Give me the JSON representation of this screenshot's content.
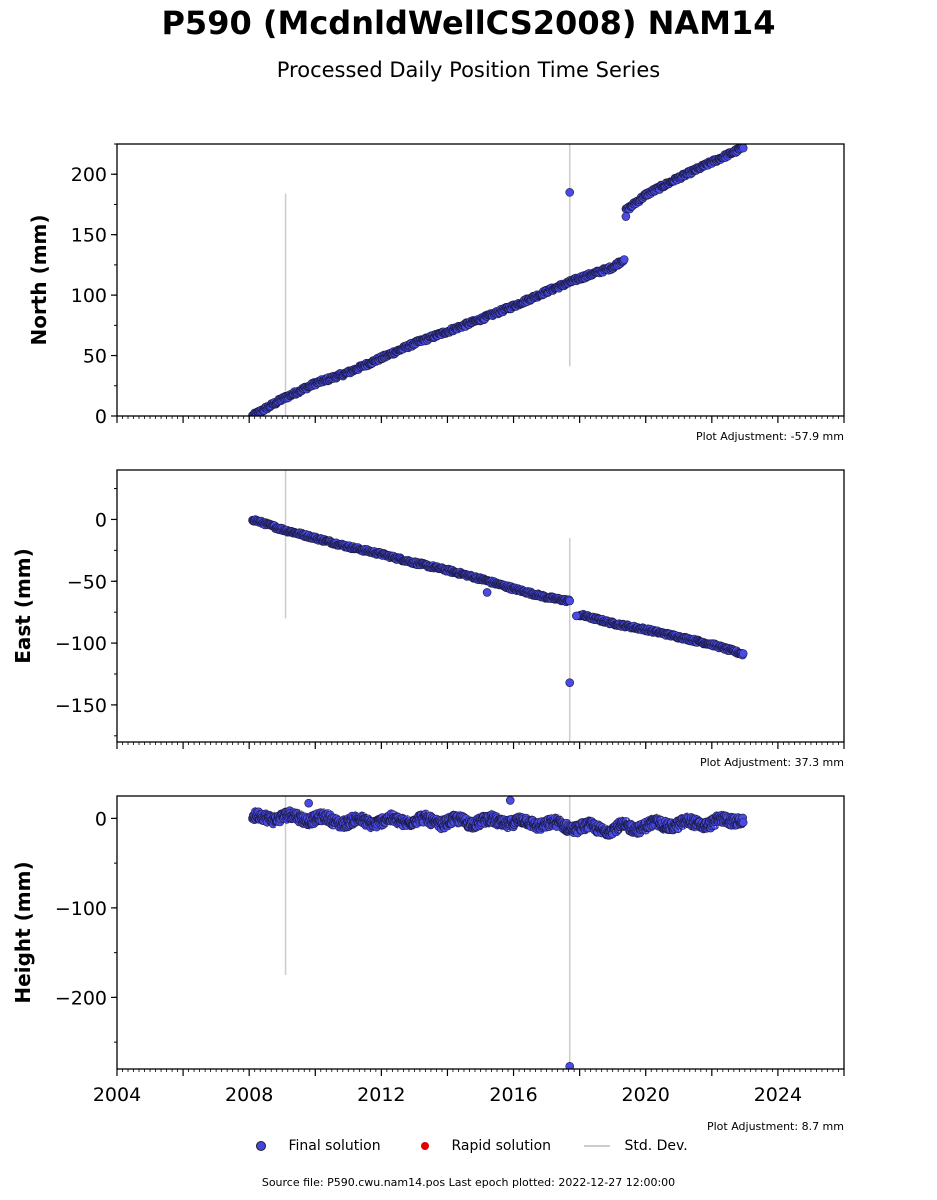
{
  "chart_data": {
    "type": "scatter",
    "title": "P590 (McdnldWellCS2008) NAM14",
    "subtitle": "Processed Daily Position Time Series",
    "x_ticks": [
      "2004",
      "2008",
      "2012",
      "2016",
      "2020",
      "2024"
    ],
    "xlim": [
      2004,
      2026
    ],
    "legend": [
      {
        "label": "Final solution",
        "color": "#4444e0"
      },
      {
        "label": "Rapid solution",
        "color": "#e00000"
      },
      {
        "label": "Std. Dev.",
        "color": "#cccccc"
      }
    ],
    "footer": "Source file: P590.cwu.nam14.pos  Last epoch plotted: 2022-12-27 12:00:00",
    "panels": [
      {
        "ylabel": "North (mm)",
        "ylim": [
          0,
          225
        ],
        "yticks": [
          "0",
          "50",
          "100",
          "150",
          "200"
        ],
        "adjustment": "Plot Adjustment: -57.9 mm",
        "series": [
          {
            "x": [
              2008.1,
              2009.0,
              2010.0,
              2011.0,
              2012.0,
              2013.0,
              2014.0,
              2015.0,
              2016.0,
              2017.0,
              2018.0,
              2019.0,
              2019.35
            ],
            "y": [
              0,
              14,
              27,
              36,
              48,
              60,
              70,
              80,
              91,
              103,
              114,
              123,
              130
            ]
          },
          {
            "x": [
              2019.4,
              2020.0,
              2021.0,
              2022.0,
              2022.95
            ],
            "y": [
              170,
              183,
              197,
              210,
              222
            ]
          }
        ],
        "outliers": [
          {
            "x": 2017.7,
            "y": 185
          },
          {
            "x": 2019.4,
            "y": 165
          }
        ],
        "error_bars": [
          {
            "x": 2009.1,
            "y_low": 0,
            "y_high": 184
          },
          {
            "x": 2017.7,
            "y_low": 41,
            "y_high": 225
          }
        ]
      },
      {
        "ylabel": "East (mm)",
        "ylim": [
          -180,
          40
        ],
        "yticks": [
          "0",
          "−50",
          "−100",
          "−150"
        ],
        "adjustment": "Plot Adjustment: 37.3 mm",
        "series": [
          {
            "x": [
              2008.1,
              2009.0,
              2010.0,
              2011.0,
              2012.0,
              2013.0,
              2014.0,
              2015.0,
              2016.0,
              2017.0,
              2017.7
            ],
            "y": [
              0,
              -8,
              -15,
              -22,
              -28,
              -35,
              -41,
              -48,
              -56,
              -63,
              -66
            ]
          },
          {
            "x": [
              2018.0,
              2019.0,
              2020.0,
              2021.0,
              2022.0,
              2022.95
            ],
            "y": [
              -77,
              -84,
              -89,
              -95,
              -101,
              -109
            ]
          }
        ],
        "outliers": [
          {
            "x": 2017.7,
            "y": -132
          },
          {
            "x": 2015.2,
            "y": -59
          },
          {
            "x": 2017.9,
            "y": -78
          }
        ],
        "error_bars": [
          {
            "x": 2009.1,
            "y_low": -80,
            "y_high": 40
          },
          {
            "x": 2017.7,
            "y_low": -180,
            "y_high": -15
          }
        ]
      },
      {
        "ylabel": "Height (mm)",
        "ylim": [
          -280,
          25
        ],
        "yticks": [
          "0",
          "−100",
          "−200"
        ],
        "adjustment": "Plot Adjustment: 8.7 mm",
        "series": [
          {
            "x": [
              2008.1,
              2009.0,
              2010.0,
              2011.0,
              2012.0,
              2013.0,
              2014.0,
              2015.0,
              2016.0,
              2017.0,
              2018.0,
              2019.0,
              2020.0,
              2021.0,
              2022.0,
              2022.95
            ],
            "y": [
              0,
              2,
              0,
              -4,
              -3,
              -2,
              -4,
              -3,
              -4,
              -6,
              -10,
              -12,
              -8,
              -6,
              -5,
              0
            ]
          }
        ],
        "outliers": [
          {
            "x": 2017.7,
            "y": -277
          },
          {
            "x": 2015.9,
            "y": 20
          },
          {
            "x": 2009.8,
            "y": 17
          }
        ],
        "error_bars": [
          {
            "x": 2009.1,
            "y_low": -175,
            "y_high": 25
          },
          {
            "x": 2017.7,
            "y_low": -280,
            "y_high": 25
          }
        ]
      }
    ]
  }
}
